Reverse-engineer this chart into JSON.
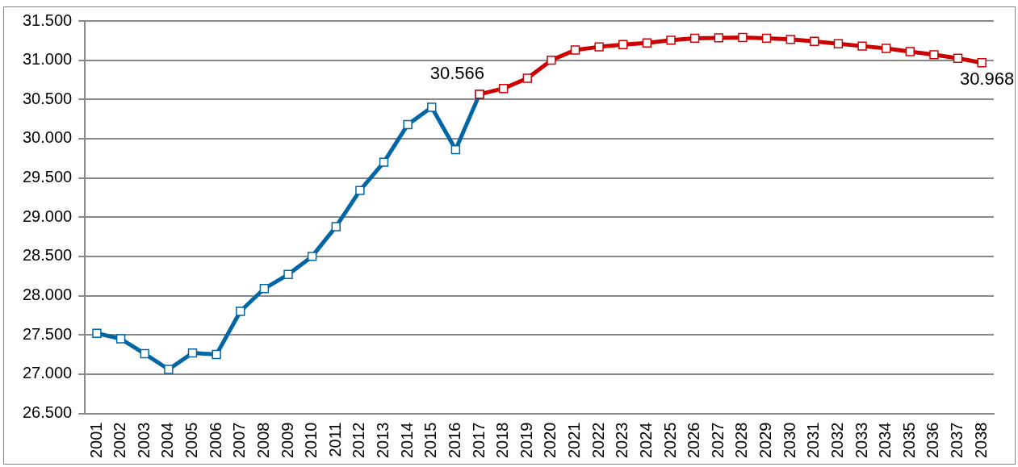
{
  "chart_data": {
    "type": "line",
    "categories": [
      "2001",
      "2002",
      "2003",
      "2004",
      "2005",
      "2006",
      "2007",
      "2008",
      "2009",
      "2010",
      "2011",
      "2012",
      "2013",
      "2014",
      "2015",
      "2016",
      "2017",
      "2018",
      "2019",
      "2020",
      "2021",
      "2022",
      "2023",
      "2024",
      "2025",
      "2026",
      "2027",
      "2028",
      "2029",
      "2030",
      "2031",
      "2032",
      "2033",
      "2034",
      "2035",
      "2036",
      "2037",
      "2038"
    ],
    "series": [
      {
        "color": "#0066a4",
        "values": [
          27520,
          27450,
          27260,
          27060,
          27270,
          27250,
          27800,
          28090,
          28270,
          28500,
          28880,
          29340,
          29700,
          30180,
          30400,
          29860,
          30566,
          null,
          null,
          null,
          null,
          null,
          null,
          null,
          null,
          null,
          null,
          null,
          null,
          null,
          null,
          null,
          null,
          null,
          null,
          null,
          null,
          null
        ],
        "value_labels": [
          null,
          null,
          null,
          null,
          null,
          null,
          null,
          null,
          null,
          null,
          null,
          null,
          null,
          null,
          null,
          null,
          "30.566",
          null,
          null,
          null,
          null,
          null,
          null,
          null,
          null,
          null,
          null,
          null,
          null,
          null,
          null,
          null,
          null,
          null,
          null,
          null,
          null,
          null
        ]
      },
      {
        "color": "#cc0000",
        "values": [
          null,
          null,
          null,
          null,
          null,
          null,
          null,
          null,
          null,
          null,
          null,
          null,
          null,
          null,
          null,
          null,
          30566,
          30640,
          30770,
          31000,
          31130,
          31170,
          31200,
          31220,
          31255,
          31280,
          31285,
          31290,
          31280,
          31265,
          31240,
          31210,
          31180,
          31150,
          31110,
          31070,
          31025,
          30968
        ],
        "value_labels": [
          null,
          null,
          null,
          null,
          null,
          null,
          null,
          null,
          null,
          null,
          null,
          null,
          null,
          null,
          null,
          null,
          null,
          null,
          null,
          null,
          null,
          null,
          null,
          null,
          null,
          null,
          null,
          null,
          null,
          null,
          null,
          null,
          null,
          null,
          null,
          null,
          null,
          "30.968"
        ]
      }
    ],
    "ylim": [
      26500,
      31500
    ],
    "yticks": [
      {
        "value": 26500,
        "label": "26.500"
      },
      {
        "value": 27000,
        "label": "27.000"
      },
      {
        "value": 27500,
        "label": "27.500"
      },
      {
        "value": 28000,
        "label": "28.000"
      },
      {
        "value": 28500,
        "label": "28.500"
      },
      {
        "value": 29000,
        "label": "29.000"
      },
      {
        "value": 29500,
        "label": "29.500"
      },
      {
        "value": 30000,
        "label": "30.000"
      },
      {
        "value": 30500,
        "label": "30.500"
      },
      {
        "value": 31000,
        "label": "31.000"
      },
      {
        "value": 31500,
        "label": "31.500"
      }
    ],
    "grid": "y",
    "marker": "square",
    "line_style": "solid",
    "legend": false
  }
}
